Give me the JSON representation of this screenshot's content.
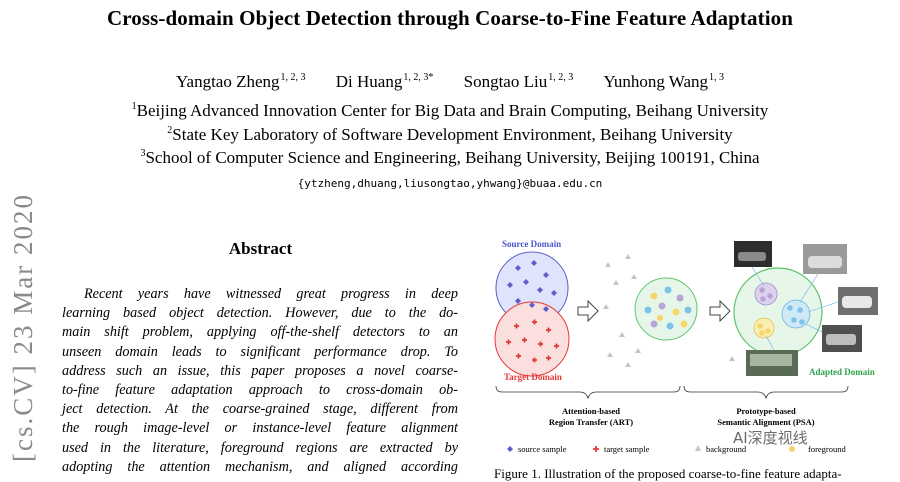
{
  "paper": {
    "title": "Cross-domain Object Detection through Coarse-to-Fine Feature Adaptation",
    "authors": [
      {
        "name": "Yangtao Zheng",
        "sup": "1, 2, 3"
      },
      {
        "name": "Di Huang",
        "sup": "1, 2, 3*"
      },
      {
        "name": "Songtao Liu",
        "sup": "1, 2, 3"
      },
      {
        "name": "Yunhong Wang",
        "sup": "1, 3"
      }
    ],
    "affiliations": [
      {
        "sup": "1",
        "text": "Beijing Advanced Innovation Center for Big Data and Brain Computing, Beihang University"
      },
      {
        "sup": "2",
        "text": "State Key Laboratory of Software Development Environment, Beihang University"
      },
      {
        "sup": "3",
        "text": "School of Computer Science and Engineering, Beihang University, Beijing 100191, China"
      }
    ],
    "email": "{ytzheng,dhuang,liusongtao,yhwang}@buaa.edu.cn",
    "arxiv_stamp": "[cs.CV]  23 Mar 2020",
    "abstract_heading": "Abstract",
    "abstract_lines": [
      "Recent years have witnessed great progress in deep",
      "learning based object detection. However, due to the do-",
      "main shift problem, applying off-the-shelf detectors to an",
      "unseen domain leads to significant performance drop. To",
      "address such an issue, this paper proposes a novel coarse-",
      "to-fine feature adaptation approach to cross-domain ob-",
      "ject detection. At the coarse-grained stage, different from",
      "the rough image-level or instance-level feature alignment",
      "used in the literature, foreground regions are extracted by",
      "adopting the attention mechanism, and aligned according"
    ]
  },
  "figure": {
    "source_domain_label": "Source Domain",
    "target_domain_label": "Target Domain",
    "adapted_domain_label": "Adapted Domain",
    "art_label_line1": "Attention-based",
    "art_label_line2": "Region Transfer (ART)",
    "psa_label_line1": "Prototype-based",
    "psa_label_line2": "Semantic Alignment (PSA)",
    "legend": {
      "source_sample": "source sample",
      "target_sample": "target sample",
      "background": "background",
      "foreground": "foreground"
    },
    "caption": "Figure 1. Illustration of the proposed coarse-to-fine feature adapta-",
    "watermark": "AI深度视线",
    "colors": {
      "source": "#5b5fc7",
      "target": "#e53935",
      "source_circle_fill": "#dfe3fb",
      "target_circle_fill": "#fbdede",
      "adapted_circle_fill": "#e6f7ea",
      "adapted_circle_stroke": "#5cc46a",
      "source_label": "#4a57c8",
      "target_label": "#e53935",
      "adapted_label": "#2fa34a",
      "purple_cluster": "#b8a4d6",
      "blue_cluster": "#7fc3e8",
      "yellow_cluster": "#f5d66a"
    }
  }
}
